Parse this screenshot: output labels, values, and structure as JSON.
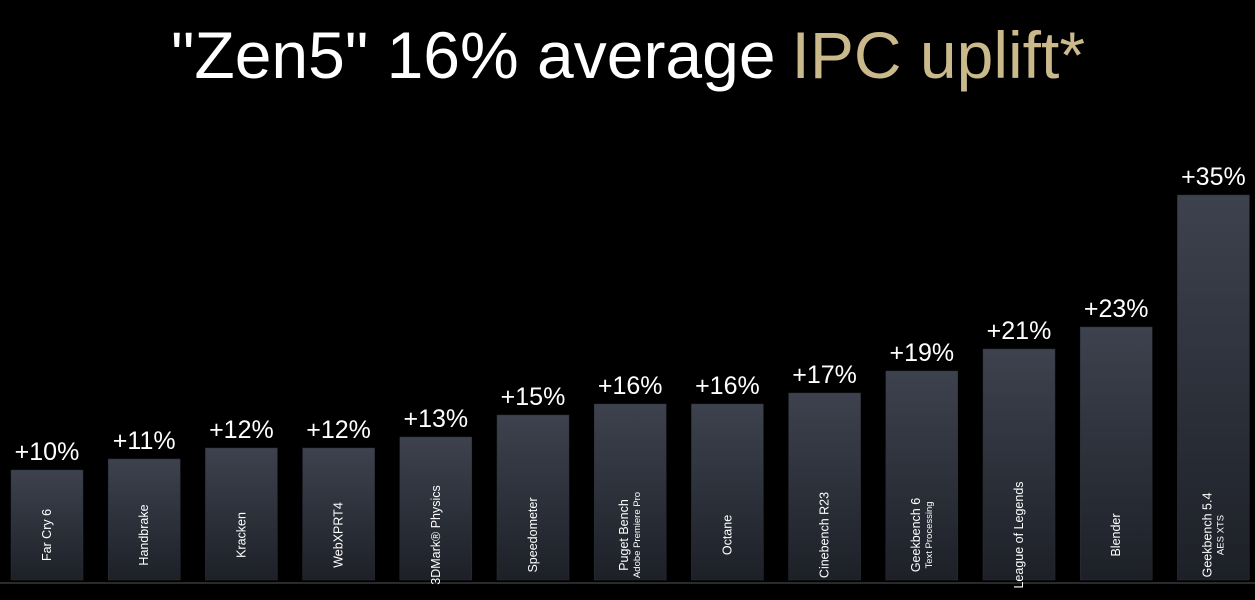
{
  "chart_data": {
    "type": "bar",
    "title": "\"Zen5\" 16% average",
    "title_highlight": "IPC uplift*",
    "categories": [
      "Far Cry 6",
      "Handbrake",
      "Kracken",
      "WebXPRT4",
      "3DMark® Physics",
      "Speedometer",
      "Puget Bench",
      "Octane",
      "Cinebench R23",
      "Geekbench 6",
      "League of Legends",
      "Blender",
      "Geekbench 5.4"
    ],
    "category_sublabels": [
      null,
      null,
      null,
      null,
      null,
      null,
      "Adobe Premiere Pro",
      null,
      null,
      "Text Processing",
      null,
      null,
      "AES XTS"
    ],
    "values": [
      10,
      11,
      12,
      12,
      13,
      15,
      16,
      16,
      17,
      19,
      21,
      23,
      35
    ],
    "value_labels": [
      "+10%",
      "+11%",
      "+12%",
      "+12%",
      "+13%",
      "+15%",
      "+16%",
      "+16%",
      "+17%",
      "+19%",
      "+21%",
      "+23%",
      "+35%"
    ],
    "color": "#2c303a",
    "title_color": "#ffffff",
    "highlight_color": "#c9b98b"
  }
}
